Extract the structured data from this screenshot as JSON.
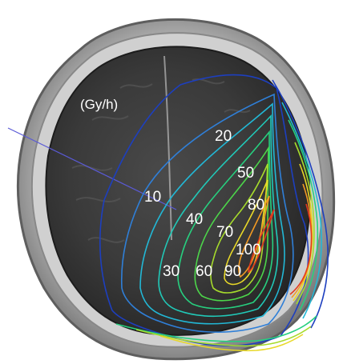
{
  "figure": {
    "unit_label": "(Gy/h)",
    "isodose_labels": [
      "10",
      "20",
      "30",
      "40",
      "50",
      "60",
      "70",
      "80",
      "90",
      "100"
    ]
  },
  "colors": {
    "background": "#ffffff",
    "skull": "#b8b8b8",
    "brain": "#3a3a3a",
    "label_text": "#ffffff",
    "pointer_line": "#5a5ad6",
    "isodose_10": "#1d3fbf",
    "isodose_20": "#2f7fd8",
    "isodose_30": "#22b8d6",
    "isodose_40": "#21c9b8",
    "isodose_50": "#27cf7f",
    "isodose_60": "#4cd64a",
    "isodose_70": "#a6db2c",
    "isodose_80": "#e8d828",
    "isodose_90": "#f29a23",
    "isodose_100": "#e43a1f"
  }
}
